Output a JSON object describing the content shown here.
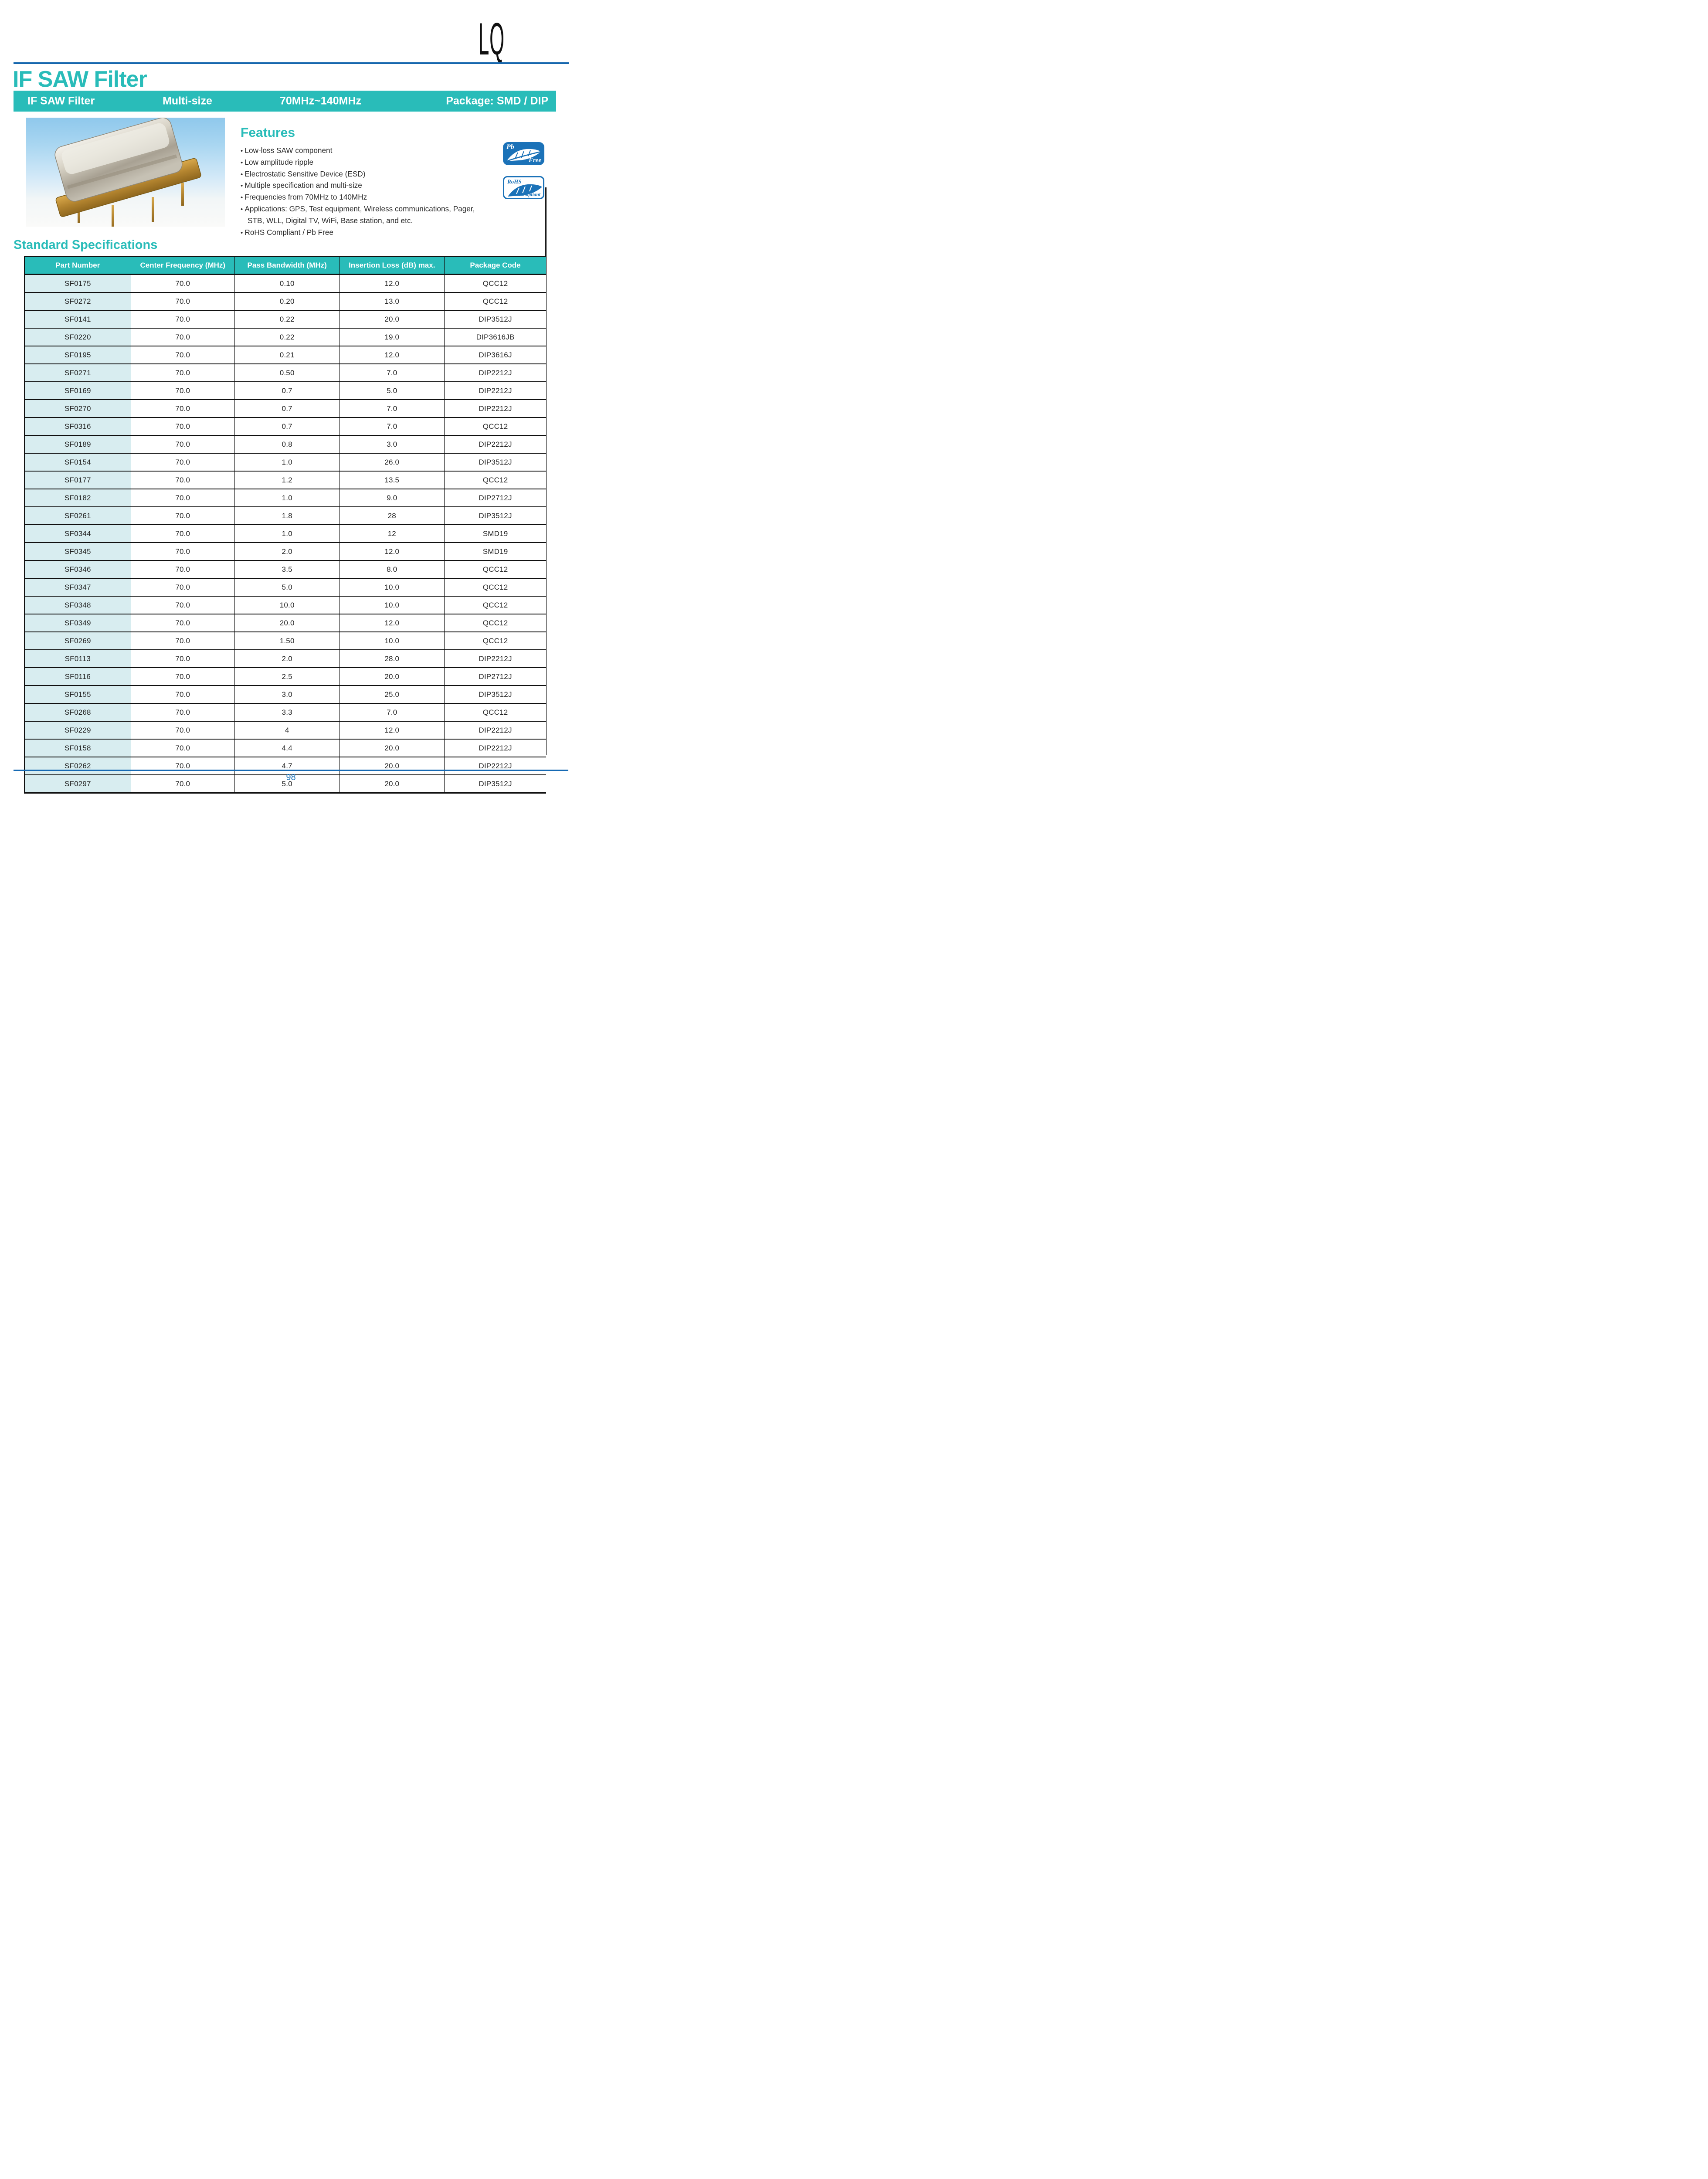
{
  "logo": "LQ",
  "header": {
    "title": "IF SAW Filter"
  },
  "banner": {
    "product": "IF SAW Filter",
    "size": "Multi-size",
    "frequency_range": "70MHz~140MHz",
    "package": "Package: SMD / DIP"
  },
  "features": {
    "heading": "Features",
    "items": [
      "Low-loss SAW component",
      "Low amplitude ripple",
      "Electrostatic Sensitive Device (ESD)",
      "Multiple specification and multi-size",
      "Frequencies from 70MHz to 140MHz",
      "Applications: GPS, Test equipment, Wireless communications, Pager, STB, WLL,  Digital TV, WiFi, Base station, and etc.",
      "RoHS Compliant / Pb Free"
    ]
  },
  "badges": {
    "pb_free": {
      "top": "Pb",
      "bottom": "Free"
    },
    "rohs": {
      "top": "RoHS",
      "bottom": "Compliant"
    }
  },
  "specs": {
    "heading": "Standard Specifications",
    "columns": [
      "Part Number",
      "Center Frequency (MHz)",
      "Pass Bandwidth (MHz)",
      "Insertion Loss (dB) max.",
      "Package Code"
    ],
    "rows": [
      [
        "SF0175",
        "70.0",
        "0.10",
        "12.0",
        "QCC12"
      ],
      [
        "SF0272",
        "70.0",
        "0.20",
        "13.0",
        "QCC12"
      ],
      [
        "SF0141",
        "70.0",
        "0.22",
        "20.0",
        "DIP3512J"
      ],
      [
        "SF0220",
        "70.0",
        "0.22",
        "19.0",
        "DIP3616JB"
      ],
      [
        "SF0195",
        "70.0",
        "0.21",
        "12.0",
        "DIP3616J"
      ],
      [
        "SF0271",
        "70.0",
        "0.50",
        "7.0",
        "DIP2212J"
      ],
      [
        "SF0169",
        "70.0",
        "0.7",
        "5.0",
        "DIP2212J"
      ],
      [
        "SF0270",
        "70.0",
        "0.7",
        "7.0",
        "DIP2212J"
      ],
      [
        "SF0316",
        "70.0",
        "0.7",
        "7.0",
        "QCC12"
      ],
      [
        "SF0189",
        "70.0",
        "0.8",
        "3.0",
        "DIP2212J"
      ],
      [
        "SF0154",
        "70.0",
        "1.0",
        "26.0",
        "DIP3512J"
      ],
      [
        "SF0177",
        "70.0",
        "1.2",
        "13.5",
        "QCC12"
      ],
      [
        "SF0182",
        "70.0",
        "1.0",
        "9.0",
        "DIP2712J"
      ],
      [
        "SF0261",
        "70.0",
        "1.8",
        "28",
        "DIP3512J"
      ],
      [
        "SF0344",
        "70.0",
        "1.0",
        "12",
        "SMD19"
      ],
      [
        "SF0345",
        "70.0",
        "2.0",
        "12.0",
        "SMD19"
      ],
      [
        "SF0346",
        "70.0",
        "3.5",
        "8.0",
        "QCC12"
      ],
      [
        "SF0347",
        "70.0",
        "5.0",
        "10.0",
        "QCC12"
      ],
      [
        "SF0348",
        "70.0",
        "10.0",
        "10.0",
        "QCC12"
      ],
      [
        "SF0349",
        "70.0",
        "20.0",
        "12.0",
        "QCC12"
      ],
      [
        "SF0269",
        "70.0",
        "1.50",
        "10.0",
        "QCC12"
      ],
      [
        "SF0113",
        "70.0",
        "2.0",
        "28.0",
        "DIP2212J"
      ],
      [
        "SF0116",
        "70.0",
        "2.5",
        "20.0",
        "DIP2712J"
      ],
      [
        "SF0155",
        "70.0",
        "3.0",
        "25.0",
        "DIP3512J"
      ],
      [
        "SF0268",
        "70.0",
        "3.3",
        "7.0",
        "QCC12"
      ],
      [
        "SF0229",
        "70.0",
        "4",
        "12.0",
        "DIP2212J"
      ],
      [
        "SF0158",
        "70.0",
        "4.4",
        "20.0",
        "DIP2212J"
      ],
      [
        "SF0262",
        "70.0",
        "4.7",
        "20.0",
        "DIP2212J"
      ],
      [
        "SF0297",
        "70.0",
        "5.0",
        "20.0",
        "DIP3512J"
      ]
    ]
  },
  "footer": {
    "page_number": "98"
  },
  "colors": {
    "teal": "#29BCB9",
    "header_rule_blue": "#1566AD",
    "badge_blue": "#1B72B8",
    "footer_blue": "#1569B3",
    "part_column_bg": "#D8EDF0"
  }
}
